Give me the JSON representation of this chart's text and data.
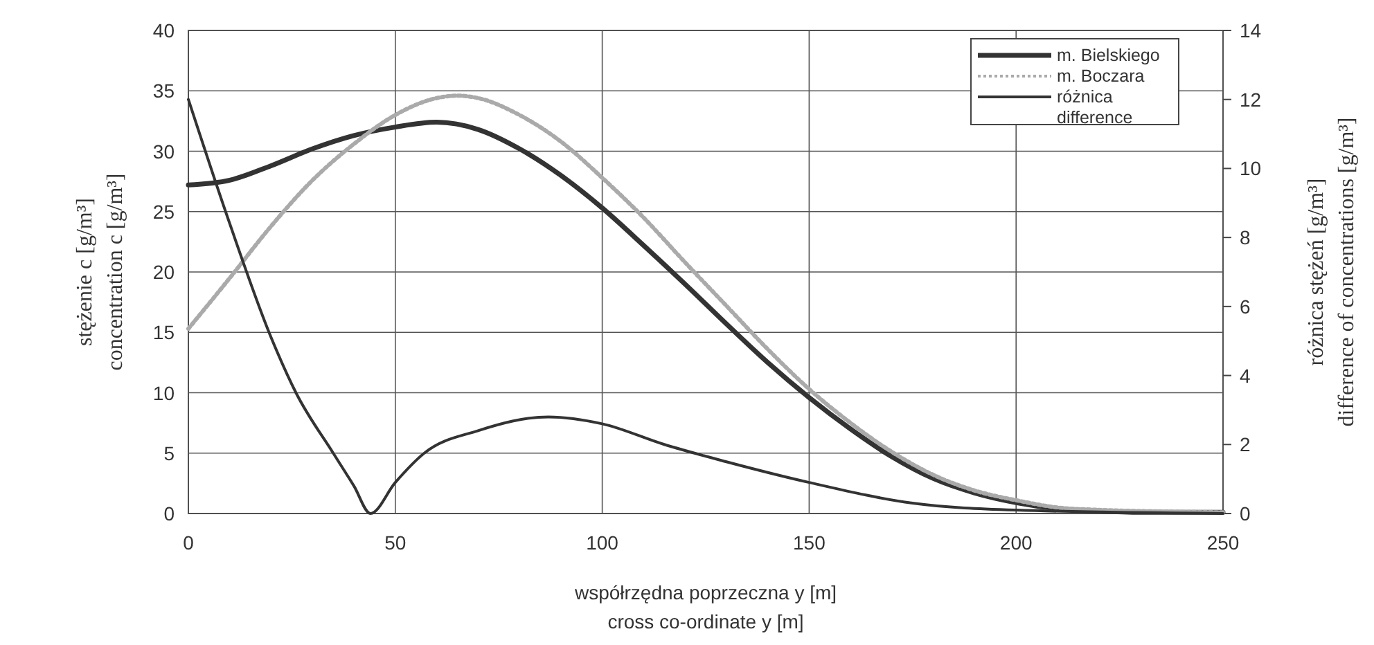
{
  "chart_data": {
    "type": "line",
    "xlabel": "współrzędna poprzeczna y [m]\ncross co-ordinate y [m]",
    "ylabel": "stężenie c [g/m³]\nconcentration c [g/m³]",
    "y2label": "różnica stężeń [g/m³]\ndifference of concentrations [g/m³]",
    "xlim": [
      0,
      250
    ],
    "xticks": [
      0,
      50,
      100,
      150,
      200,
      250
    ],
    "ylim": [
      0,
      40
    ],
    "yticks": [
      0,
      5,
      10,
      15,
      20,
      25,
      30,
      35,
      40
    ],
    "y2lim": [
      0,
      14
    ],
    "y2ticks": [
      0,
      2,
      4,
      6,
      8,
      10,
      12,
      14
    ],
    "grid": true,
    "legend": "top right",
    "series": [
      {
        "name": "m. Bielskiego",
        "color": "#333333",
        "line_style": "solid",
        "x": [
          0,
          10,
          20,
          30,
          40,
          50,
          60,
          70,
          80,
          90,
          100,
          110,
          120,
          130,
          140,
          150,
          160,
          170,
          180,
          190,
          200,
          210,
          220,
          230,
          250
        ],
        "values": [
          27.2,
          27.6,
          28.8,
          30.2,
          31.3,
          32.0,
          32.4,
          31.8,
          30.2,
          28.0,
          25.3,
          22.2,
          19.0,
          15.7,
          12.5,
          9.6,
          7.0,
          4.7,
          2.9,
          1.7,
          0.9,
          0.4,
          0.2,
          0.1,
          0.1
        ]
      },
      {
        "name": "m. Boczara",
        "color": "#aaaaaa",
        "line_style": "dotted",
        "x": [
          0,
          10,
          20,
          30,
          40,
          50,
          60,
          65,
          70,
          80,
          90,
          100,
          110,
          120,
          130,
          140,
          150,
          160,
          170,
          180,
          190,
          200,
          210,
          220,
          230,
          250
        ],
        "values": [
          15.3,
          19.5,
          23.8,
          27.6,
          30.6,
          33.0,
          34.4,
          34.6,
          34.4,
          33.0,
          30.8,
          27.8,
          24.5,
          20.8,
          17.2,
          13.6,
          10.3,
          7.5,
          5.1,
          3.2,
          1.9,
          1.1,
          0.5,
          0.3,
          0.2,
          0.1
        ]
      },
      {
        "name": "różnica\ndifference",
        "color": "#333333",
        "line_style": "solid",
        "axis": "y2",
        "x": [
          0,
          10,
          20,
          26,
          35,
          40,
          44,
          50,
          57,
          70,
          87,
          100,
          115,
          130,
          150,
          175,
          200,
          250
        ],
        "values": [
          12.0,
          8.4,
          5.1,
          3.5,
          1.75,
          0.8,
          0,
          0.9,
          1.75,
          2.4,
          2.8,
          2.6,
          2.0,
          1.5,
          0.9,
          0.3,
          0.1,
          0
        ]
      }
    ]
  }
}
